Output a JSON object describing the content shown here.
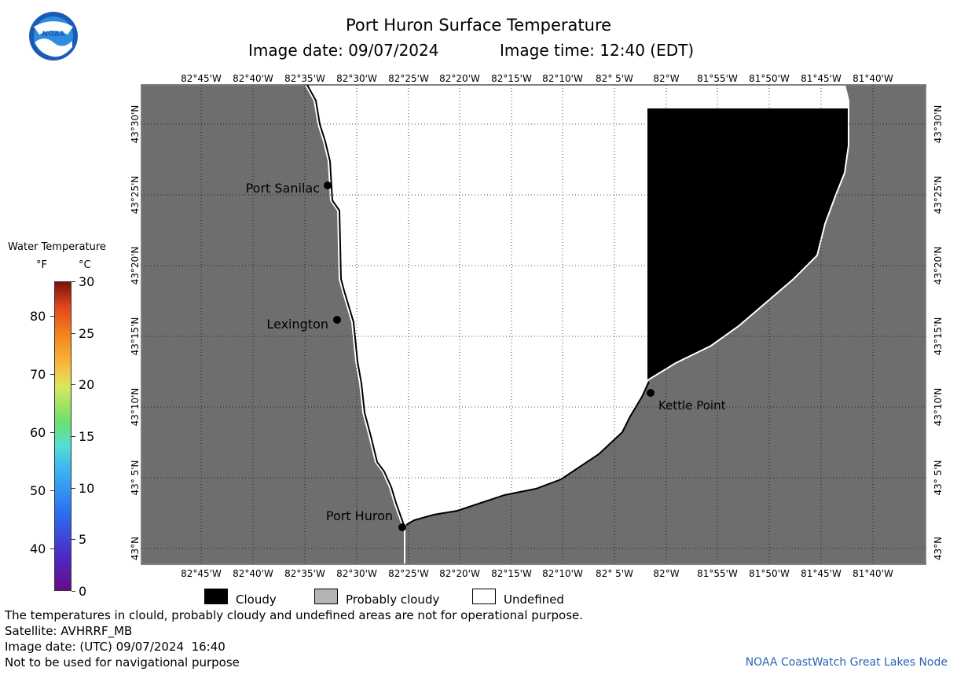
{
  "header": {
    "title": "Port Huron Surface Temperature",
    "subtitle_date": "Image date: 09/07/2024",
    "subtitle_time": "Image time: 12:40 (EDT)"
  },
  "logo": {
    "text": "NOAA"
  },
  "colorbar": {
    "title": "Water Temperature",
    "unit_f": "°F",
    "unit_c": "°C",
    "f_ticks": [
      "80",
      "70",
      "60",
      "50",
      "40"
    ],
    "c_ticks": [
      "30",
      "25",
      "20",
      "15",
      "10",
      "5",
      "0"
    ]
  },
  "map": {
    "lon_labels": [
      "82°45'W",
      "82°40'W",
      "82°35'W",
      "82°30'W",
      "82°25'W",
      "82°20'W",
      "82°15'W",
      "82°10'W",
      "82° 5'W",
      "82°W",
      "81°55'W",
      "81°50'W",
      "81°45'W",
      "81°40'W"
    ],
    "lat_labels": [
      "43°30'N",
      "43°25'N",
      "43°20'N",
      "43°15'N",
      "43°10'N",
      "43° 5'N",
      "43°N"
    ],
    "places": [
      {
        "name": "Port Sanilac"
      },
      {
        "name": "Lexington"
      },
      {
        "name": "Port Huron"
      },
      {
        "name": "Kettle Point"
      }
    ]
  },
  "legend": {
    "cloudy": "Cloudy",
    "probably_cloudy": "Probably cloudy",
    "undefined": "Undefined"
  },
  "notes": {
    "disclaimer": "The temperatures in clould, probably cloudy and undefined areas are not for operational purpose.",
    "satellite": "Satellite: AVHRRF_MB",
    "utc_date": "Image date: (UTC) 09/07/2024  16:40",
    "nav": "Not to be used for navigational purpose"
  },
  "credit": "NOAA CoastWatch Great Lakes Node",
  "colors": {
    "land": "#6e6e6e",
    "cloudy": "#000000",
    "probably_cloudy": "#b4b4b4",
    "undefined": "#ffffff"
  }
}
